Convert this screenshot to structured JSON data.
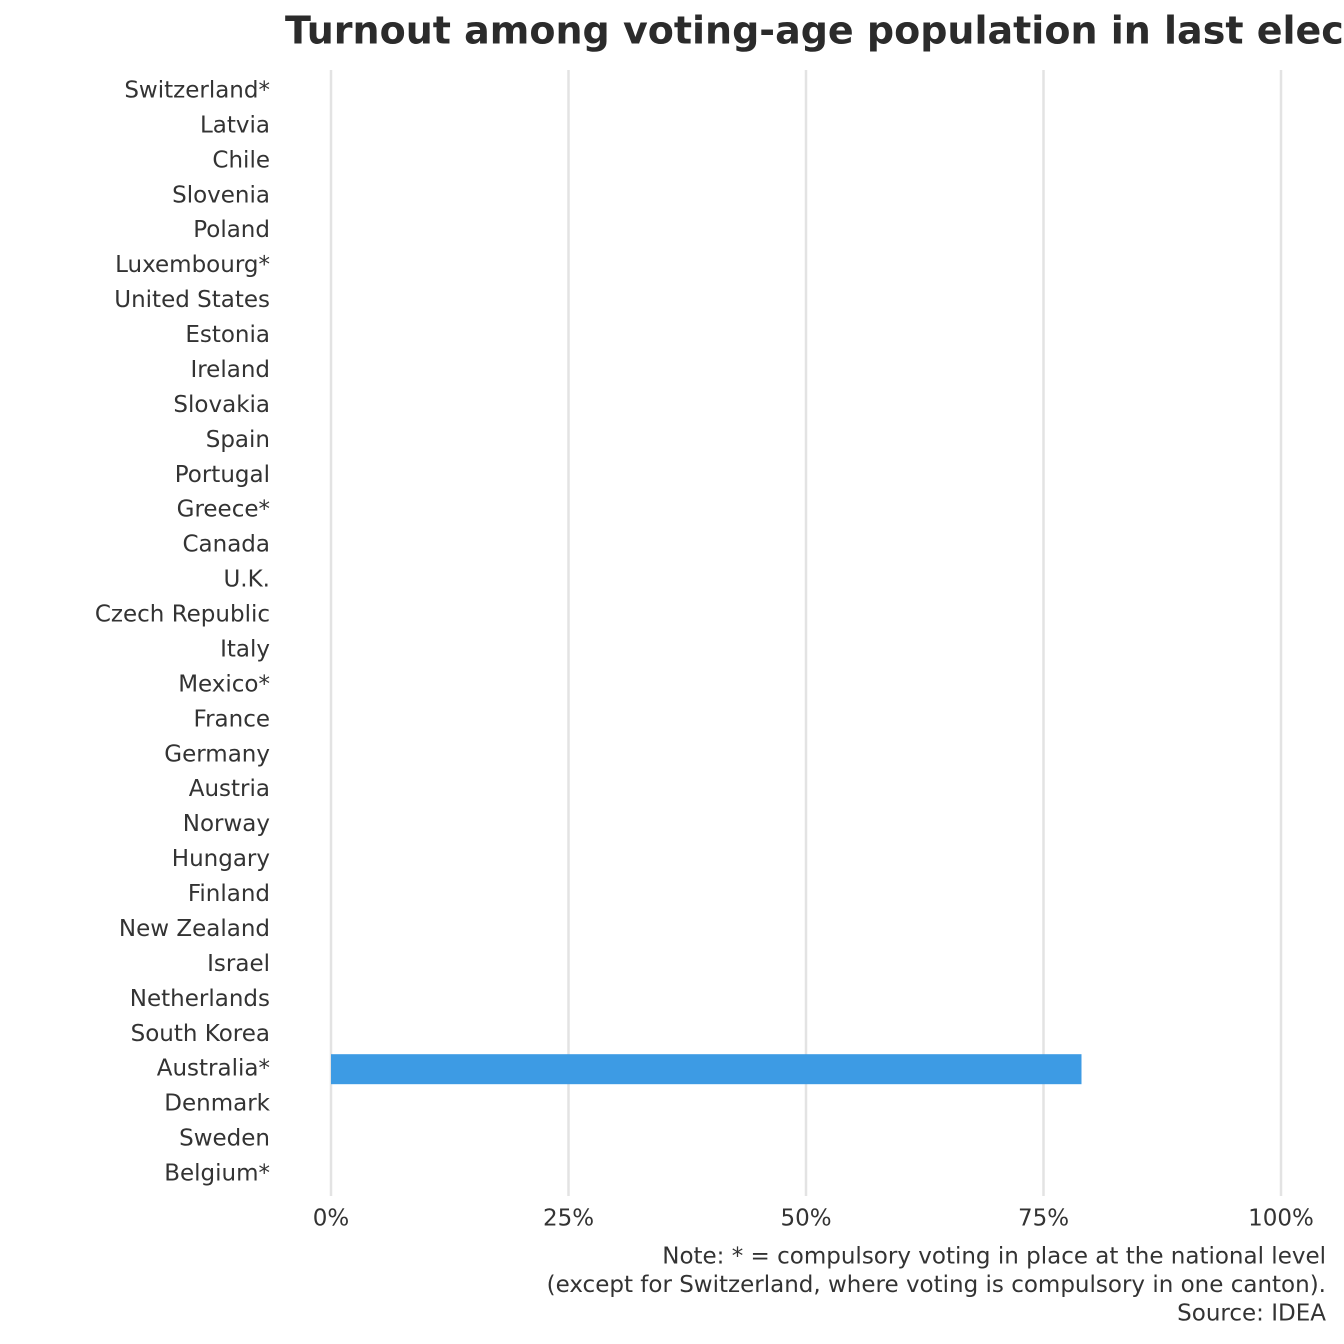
{
  "chart_data": {
    "type": "bar",
    "orientation": "horizontal",
    "title": "Turnout among voting-age population in last election",
    "categories": [
      "Switzerland*",
      "Latvia",
      "Chile",
      "Slovenia",
      "Poland",
      "Luxembourg*",
      "United States",
      "Estonia",
      "Ireland",
      "Slovakia",
      "Spain",
      "Portugal",
      "Greece*",
      "Canada",
      "U.K.",
      "Czech Republic",
      "Italy",
      "Mexico*",
      "France",
      "Germany",
      "Austria",
      "Norway",
      "Hungary",
      "Finland",
      "New Zealand",
      "Israel",
      "Netherlands",
      "South Korea",
      "Australia*",
      "Denmark",
      "Sweden",
      "Belgium*"
    ],
    "values": [
      null,
      null,
      null,
      null,
      null,
      null,
      null,
      null,
      null,
      null,
      null,
      null,
      null,
      null,
      null,
      null,
      null,
      null,
      null,
      null,
      null,
      null,
      null,
      null,
      null,
      null,
      null,
      null,
      79,
      null,
      null,
      null
    ],
    "color": "#3d9be4",
    "xlim": [
      0,
      100
    ],
    "xticks": [
      {
        "value": 0,
        "label": "0%"
      },
      {
        "value": 25,
        "label": "25%"
      },
      {
        "value": 50,
        "label": "50%"
      },
      {
        "value": 75,
        "label": "75%"
      },
      {
        "value": 100,
        "label": "100%"
      }
    ],
    "grid": true,
    "caption": [
      "Note: *  = compulsory voting in place at the national level",
      "(except for Switzerland, where voting is compulsory in one canton).",
      "Source: IDEA"
    ]
  }
}
